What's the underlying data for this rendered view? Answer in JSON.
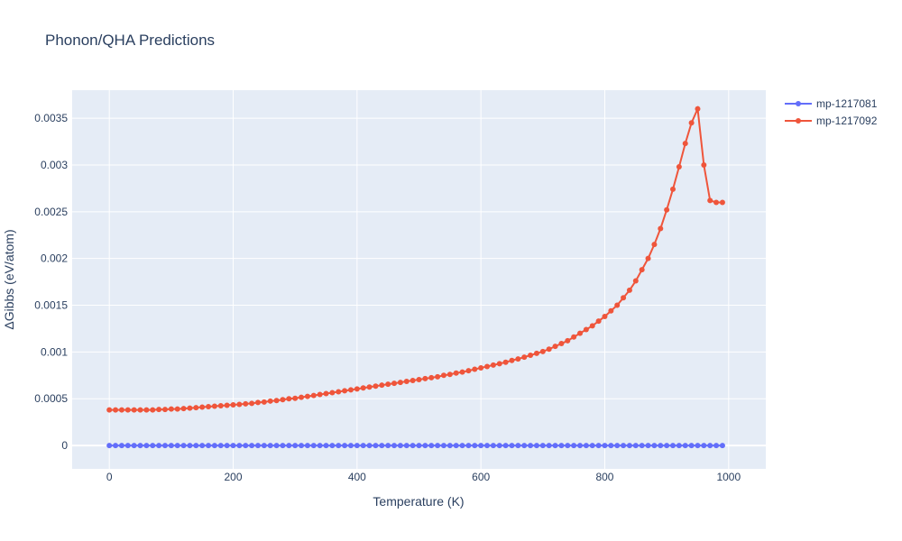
{
  "chart_data": {
    "type": "line",
    "title": "Phonon/QHA Predictions",
    "xlabel": "Temperature (K)",
    "ylabel": "ΔGibbs (eV/atom)",
    "xlim": [
      -60,
      1060
    ],
    "ylim": [
      -0.00025,
      0.0038
    ],
    "x_ticks": [
      0,
      200,
      400,
      600,
      800,
      1000
    ],
    "x_tick_labels": [
      "0",
      "200",
      "400",
      "600",
      "800",
      "1000"
    ],
    "y_ticks": [
      0,
      0.0005,
      0.001,
      0.0015,
      0.002,
      0.0025,
      0.003,
      0.0035
    ],
    "y_tick_labels": [
      "0",
      "0.0005",
      "0.001",
      "0.0015",
      "0.002",
      "0.0025",
      "0.003",
      "0.0035"
    ],
    "grid": true,
    "legend_position": "top-right",
    "x": [
      0,
      10,
      20,
      30,
      40,
      50,
      60,
      70,
      80,
      90,
      100,
      110,
      120,
      130,
      140,
      150,
      160,
      170,
      180,
      190,
      200,
      210,
      220,
      230,
      240,
      250,
      260,
      270,
      280,
      290,
      300,
      310,
      320,
      330,
      340,
      350,
      360,
      370,
      380,
      390,
      400,
      410,
      420,
      430,
      440,
      450,
      460,
      470,
      480,
      490,
      500,
      510,
      520,
      530,
      540,
      550,
      560,
      570,
      580,
      590,
      600,
      610,
      620,
      630,
      640,
      650,
      660,
      670,
      680,
      690,
      700,
      710,
      720,
      730,
      740,
      750,
      760,
      770,
      780,
      790,
      800,
      810,
      820,
      830,
      840,
      850,
      860,
      870,
      880,
      890,
      900,
      910,
      920,
      930,
      940,
      950,
      960,
      970,
      980,
      990
    ],
    "series": [
      {
        "name": "mp-1217081",
        "color": "#636efa",
        "values": [
          0,
          0,
          0,
          0,
          0,
          0,
          0,
          0,
          0,
          0,
          0,
          0,
          0,
          0,
          0,
          0,
          0,
          0,
          0,
          0,
          0,
          0,
          0,
          0,
          0,
          0,
          0,
          0,
          0,
          0,
          0,
          0,
          0,
          0,
          0,
          0,
          0,
          0,
          0,
          0,
          0,
          0,
          0,
          0,
          0,
          0,
          0,
          0,
          0,
          0,
          0,
          0,
          0,
          0,
          0,
          0,
          0,
          0,
          0,
          0,
          0,
          0,
          0,
          0,
          0,
          0,
          0,
          0,
          0,
          0,
          0,
          0,
          0,
          0,
          0,
          0,
          0,
          0,
          0,
          0,
          0,
          0,
          0,
          0,
          0,
          0,
          0,
          0,
          0,
          0,
          0,
          0,
          0,
          0,
          0,
          0,
          0,
          0,
          0,
          0
        ]
      },
      {
        "name": "mp-1217092",
        "color": "#ef553b",
        "values": [
          0.00038,
          0.00038,
          0.00038,
          0.00038,
          0.00038,
          0.00038,
          0.00038,
          0.00038,
          0.000385,
          0.000385,
          0.00039,
          0.00039,
          0.000395,
          0.0004,
          0.000405,
          0.00041,
          0.000415,
          0.00042,
          0.000425,
          0.00043,
          0.000435,
          0.00044,
          0.000445,
          0.00045,
          0.00046,
          0.000465,
          0.000475,
          0.00048,
          0.00049,
          0.0005,
          0.000505,
          0.000515,
          0.000525,
          0.000535,
          0.000545,
          0.000555,
          0.000565,
          0.000575,
          0.000585,
          0.000595,
          0.000605,
          0.000615,
          0.000625,
          0.000635,
          0.000645,
          0.000655,
          0.000665,
          0.000675,
          0.000685,
          0.000695,
          0.000705,
          0.000715,
          0.000725,
          0.000735,
          0.00075,
          0.00076,
          0.000775,
          0.000785,
          0.0008,
          0.000815,
          0.00083,
          0.000845,
          0.00086,
          0.000875,
          0.00089,
          0.00091,
          0.000925,
          0.000945,
          0.000965,
          0.000985,
          0.001005,
          0.00103,
          0.00106,
          0.00109,
          0.00112,
          0.00116,
          0.0012,
          0.00124,
          0.00128,
          0.00133,
          0.00138,
          0.00144,
          0.0015,
          0.00158,
          0.00166,
          0.00176,
          0.00188,
          0.002,
          0.00215,
          0.00232,
          0.00252,
          0.00274,
          0.00298,
          0.00323,
          0.00345,
          0.0036,
          0.003,
          0.00262,
          0.0026,
          0.0026
        ]
      }
    ]
  }
}
